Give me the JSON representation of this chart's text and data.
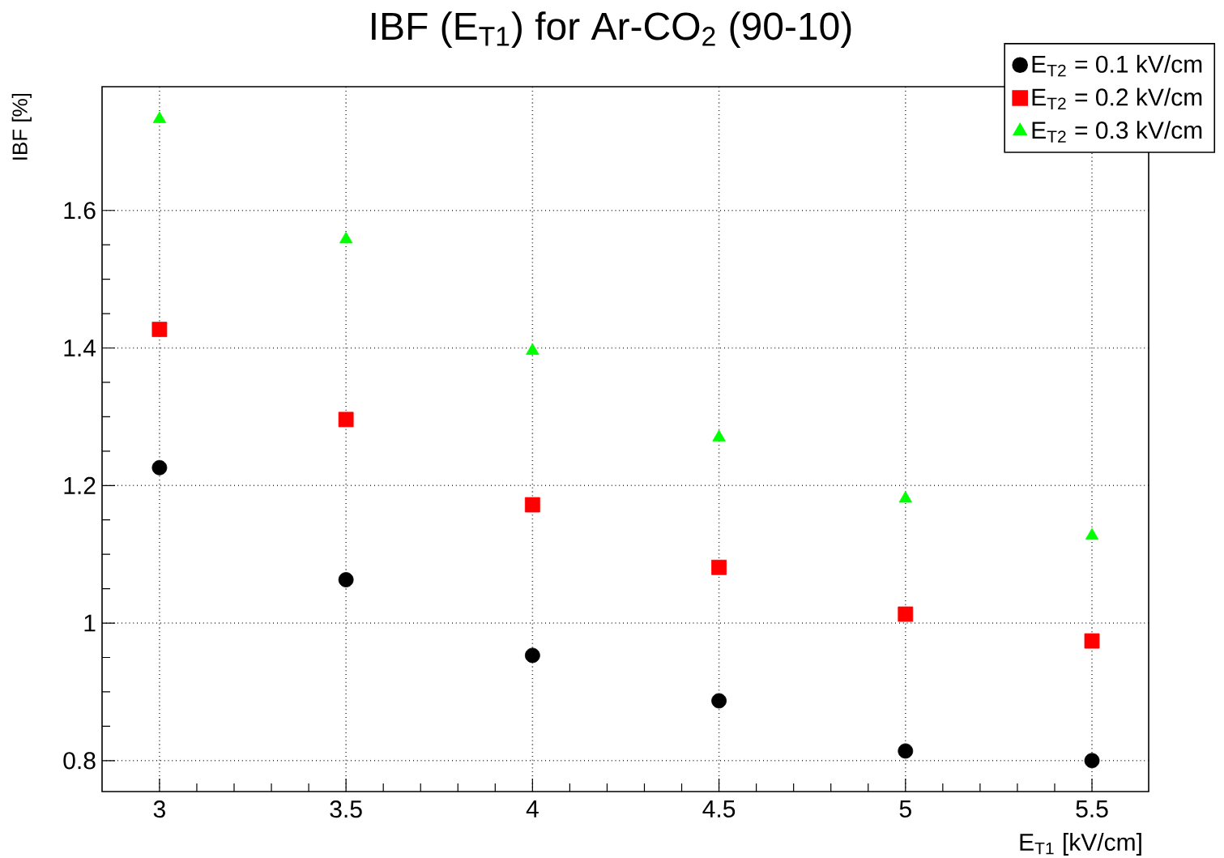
{
  "chart_data": {
    "type": "scatter",
    "title": "IBF (E$_{T1}$) for Ar-CO$_{2}$ (90-10)",
    "xlabel": "E$_{T1}$ [kV/cm]",
    "ylabel": "IBF [%]",
    "x": [
      3,
      3.5,
      4,
      4.5,
      5,
      5.5
    ],
    "series": [
      {
        "name": "E$_{T2}$ = 0.1 kV/cm",
        "color": "#000000",
        "marker": "circle",
        "values": [
          1.226,
          1.063,
          0.953,
          0.887,
          0.814,
          0.8
        ]
      },
      {
        "name": "E$_{T2}$ = 0.2 kV/cm",
        "color": "#ff0000",
        "marker": "square",
        "values": [
          1.427,
          1.296,
          1.172,
          1.081,
          1.013,
          0.974
        ]
      },
      {
        "name": "E$_{T2}$ = 0.3 kV/cm",
        "color": "#00ff00",
        "marker": "triangle",
        "values": [
          1.733,
          1.558,
          1.396,
          1.27,
          1.181,
          1.127
        ]
      }
    ],
    "xlim": [
      2.846,
      5.652
    ],
    "ylim": [
      0.755,
      1.78
    ],
    "xticks": [
      3,
      3.5,
      4,
      4.5,
      5,
      5.5
    ],
    "yticks": [
      0.8,
      1,
      1.2,
      1.4,
      1.6
    ],
    "grid": true,
    "legend": "top right"
  }
}
